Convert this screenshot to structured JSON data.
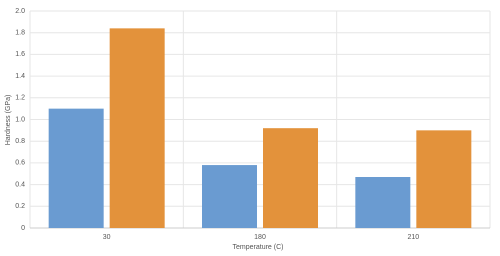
{
  "chart_data": {
    "type": "bar",
    "x_label": "Temperature (C)",
    "y_label": "Hardness (GPa)",
    "categories": [
      "30",
      "180",
      "210"
    ],
    "series": [
      {
        "color": "#6a9bd1",
        "values": [
          1.1,
          0.58,
          0.47
        ]
      },
      {
        "color": "#e3923b",
        "values": [
          1.84,
          0.92,
          0.9
        ]
      }
    ],
    "ylim": [
      0,
      2.0
    ],
    "yticks": [
      0,
      0.2,
      0.4,
      0.6,
      0.8,
      {
        "value": 1.0,
        "label": "1.0"
      },
      1.2,
      1.4,
      1.6,
      1.8,
      {
        "value": 2.0,
        "label": "2.0"
      }
    ],
    "grid": true
  }
}
